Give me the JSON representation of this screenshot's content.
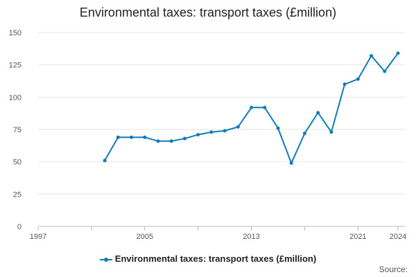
{
  "chart_data": {
    "type": "line",
    "title": "Environmental taxes: transport taxes (£million)",
    "xlabel": "",
    "ylabel": "",
    "x": [
      1997,
      1998,
      1999,
      2000,
      2001,
      2002,
      2003,
      2004,
      2005,
      2006,
      2007,
      2008,
      2009,
      2010,
      2011,
      2012,
      2013,
      2014,
      2015,
      2016,
      2017,
      2018,
      2019,
      2020,
      2021,
      2022,
      2023,
      2024
    ],
    "x_ticks": [
      1997,
      2005,
      2013,
      2021,
      2024
    ],
    "ylim": [
      0,
      150
    ],
    "y_ticks": [
      0,
      25,
      50,
      75,
      100,
      125,
      150
    ],
    "grid": true,
    "legend_position": "bottom",
    "series": [
      {
        "name": "Environmental taxes: transport taxes (£million)",
        "color": "#0f7cb8",
        "values": [
          null,
          null,
          null,
          null,
          null,
          51,
          69,
          69,
          69,
          66,
          66,
          68,
          71,
          73,
          74,
          77,
          92,
          92,
          76,
          49,
          72,
          88,
          73,
          110,
          114,
          132,
          120,
          134
        ]
      }
    ]
  },
  "legend": {
    "label": "Environmental taxes: transport taxes (£million)"
  },
  "source": {
    "label": "Source:"
  }
}
